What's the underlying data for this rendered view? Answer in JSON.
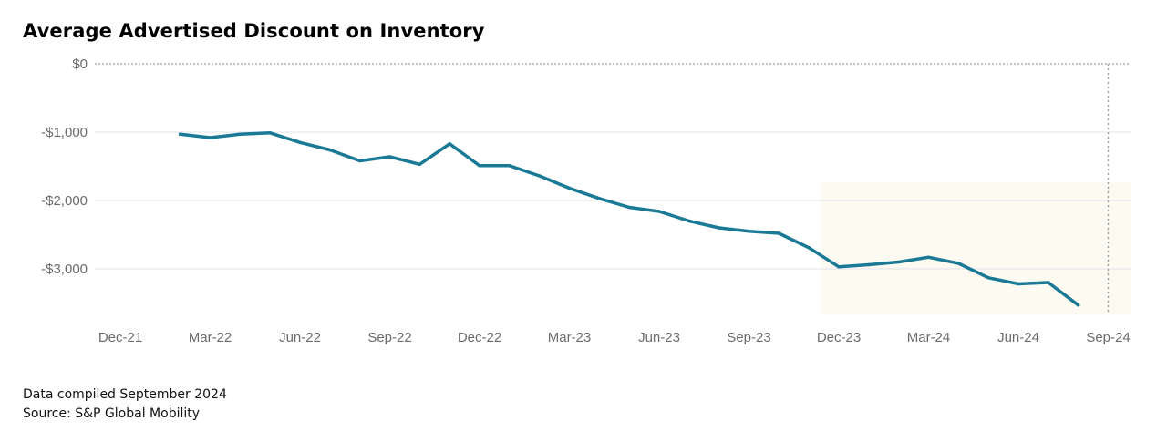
{
  "colors": {
    "line": "#1a7a96",
    "grid": "#dfe3ea",
    "zero_line": "#9aa0a6",
    "marker": "#9aa0a6",
    "tick_text": "#6b6b6b",
    "shade": "#fbf7ea"
  },
  "chart_data": {
    "type": "line",
    "title": "Average Advertised Discount on Inventory",
    "x_tick_labels": [
      "Dec-21",
      "Mar-22",
      "Jun-22",
      "Sep-22",
      "Dec-22",
      "Mar-23",
      "Jun-23",
      "Sep-23",
      "Dec-23",
      "Mar-24",
      "Jun-24",
      "Sep-24"
    ],
    "y_tick_labels": [
      "$0",
      "-$1,000",
      "-$2,000",
      "-$3,000"
    ],
    "y_ticks": [
      0,
      -1000,
      -2000,
      -3000
    ],
    "ylim": [
      -3650,
      0
    ],
    "xlim": [
      "2021-12",
      "2024-09"
    ],
    "grid": true,
    "reference_line": {
      "date": "2024-09",
      "style": "dotted"
    },
    "series": [
      {
        "x": [
          "2022-02",
          "2022-03",
          "2022-04",
          "2022-05",
          "2022-06",
          "2022-07",
          "2022-08",
          "2022-09",
          "2022-10",
          "2022-11",
          "2022-12",
          "2023-01",
          "2023-02",
          "2023-03",
          "2023-04",
          "2023-05",
          "2023-06",
          "2023-07",
          "2023-08",
          "2023-09",
          "2023-10",
          "2023-11",
          "2023-12",
          "2024-01",
          "2024-02",
          "2024-03",
          "2024-04",
          "2024-05",
          "2024-06",
          "2024-07",
          "2024-08"
        ],
        "values": [
          -1030,
          -1080,
          -1030,
          -1010,
          -1150,
          -1260,
          -1420,
          -1360,
          -1470,
          -1170,
          -1490,
          -1490,
          -1640,
          -1820,
          -1970,
          -2100,
          -2160,
          -2300,
          -2400,
          -2450,
          -2480,
          -2690,
          -2970,
          -2940,
          -2900,
          -2830,
          -2920,
          -3130,
          -3220,
          -3200,
          -3530
        ]
      }
    ]
  },
  "footer": {
    "line1": "Data compiled September 2024",
    "line2": "Source: S&P Global Mobility"
  }
}
